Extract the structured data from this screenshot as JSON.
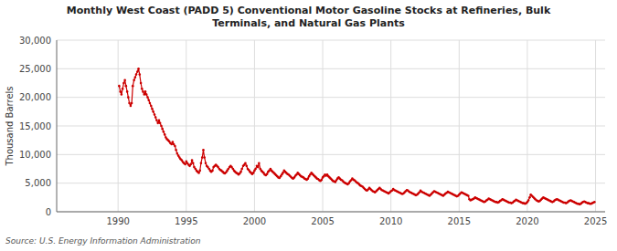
{
  "chart_data": {
    "type": "line",
    "title": "Monthly West Coast (PADD 5) Conventional Motor Gasoline Stocks at Refineries, Bulk\nTerminals, and Natural Gas Plants",
    "ylabel": "Thousand Barrels",
    "source": "Source: U.S. Energy Information Administration",
    "color": "#cc0000",
    "marker": "circle",
    "grid": true,
    "xlim": [
      1985.5,
      2025.7
    ],
    "xticks": [
      1990,
      1995,
      2000,
      2005,
      2010,
      2015,
      2020,
      2025
    ],
    "ylim": [
      0,
      30000
    ],
    "yticks": [
      0,
      {
        "value": 5000,
        "label": "5,000"
      },
      {
        "value": 10000,
        "label": "10,000"
      },
      {
        "value": 15000,
        "label": "15,000"
      },
      {
        "value": 20000,
        "label": "20,000"
      },
      {
        "value": 25000,
        "label": "25,000"
      },
      {
        "value": 30000,
        "label": "30,000"
      }
    ],
    "x": [
      1990.08,
      1990.17,
      1990.25,
      1990.33,
      1990.42,
      1990.5,
      1990.58,
      1990.67,
      1990.75,
      1990.83,
      1990.92,
      1991.0,
      1991.08,
      1991.17,
      1991.25,
      1991.33,
      1991.42,
      1991.5,
      1991.58,
      1991.67,
      1991.75,
      1991.83,
      1991.92,
      1992.0,
      1992.08,
      1992.17,
      1992.25,
      1992.33,
      1992.42,
      1992.5,
      1992.58,
      1992.67,
      1992.75,
      1992.83,
      1992.92,
      1993.0,
      1993.08,
      1993.17,
      1993.25,
      1993.33,
      1993.42,
      1993.5,
      1993.58,
      1993.67,
      1993.75,
      1993.83,
      1993.92,
      1994.0,
      1994.08,
      1994.17,
      1994.25,
      1994.33,
      1994.42,
      1994.5,
      1994.58,
      1994.67,
      1994.75,
      1994.83,
      1994.92,
      1995.0,
      1995.08,
      1995.17,
      1995.25,
      1995.33,
      1995.42,
      1995.5,
      1995.58,
      1995.67,
      1995.75,
      1995.83,
      1995.92,
      1996.0,
      1996.08,
      1996.17,
      1996.25,
      1996.33,
      1996.42,
      1996.5,
      1996.58,
      1996.67,
      1996.75,
      1996.83,
      1996.92,
      1997.0,
      1997.08,
      1997.17,
      1997.25,
      1997.33,
      1997.42,
      1997.5,
      1997.58,
      1997.67,
      1997.75,
      1997.83,
      1997.92,
      1998.0,
      1998.08,
      1998.17,
      1998.25,
      1998.33,
      1998.42,
      1998.5,
      1998.58,
      1998.67,
      1998.75,
      1998.83,
      1998.92,
      1999.0,
      1999.08,
      1999.17,
      1999.25,
      1999.33,
      1999.42,
      1999.5,
      1999.58,
      1999.67,
      1999.75,
      1999.83,
      1999.92,
      2000.0,
      2000.08,
      2000.17,
      2000.25,
      2000.33,
      2000.42,
      2000.5,
      2000.58,
      2000.67,
      2000.75,
      2000.83,
      2000.92,
      2001.0,
      2001.08,
      2001.17,
      2001.25,
      2001.33,
      2001.42,
      2001.5,
      2001.58,
      2001.67,
      2001.75,
      2001.83,
      2001.92,
      2002.0,
      2002.08,
      2002.17,
      2002.25,
      2002.33,
      2002.42,
      2002.5,
      2002.58,
      2002.67,
      2002.75,
      2002.83,
      2002.92,
      2003.0,
      2003.08,
      2003.17,
      2003.25,
      2003.33,
      2003.42,
      2003.5,
      2003.58,
      2003.67,
      2003.75,
      2003.83,
      2003.92,
      2004.0,
      2004.08,
      2004.17,
      2004.25,
      2004.33,
      2004.42,
      2004.5,
      2004.58,
      2004.67,
      2004.75,
      2004.83,
      2004.92,
      2005.0,
      2005.08,
      2005.17,
      2005.25,
      2005.33,
      2005.42,
      2005.5,
      2005.58,
      2005.67,
      2005.75,
      2005.83,
      2005.92,
      2006.0,
      2006.08,
      2006.17,
      2006.25,
      2006.33,
      2006.42,
      2006.5,
      2006.58,
      2006.67,
      2006.75,
      2006.83,
      2006.92,
      2007.0,
      2007.08,
      2007.17,
      2007.25,
      2007.33,
      2007.42,
      2007.5,
      2007.58,
      2007.67,
      2007.75,
      2007.83,
      2007.92,
      2008.0,
      2008.08,
      2008.17,
      2008.25,
      2008.33,
      2008.42,
      2008.5,
      2008.58,
      2008.67,
      2008.75,
      2008.83,
      2008.92,
      2009.0,
      2009.08,
      2009.17,
      2009.25,
      2009.33,
      2009.42,
      2009.5,
      2009.58,
      2009.67,
      2009.75,
      2009.83,
      2009.92,
      2010.0,
      2010.08,
      2010.17,
      2010.25,
      2010.33,
      2010.42,
      2010.5,
      2010.58,
      2010.67,
      2010.75,
      2010.83,
      2010.92,
      2011.0,
      2011.08,
      2011.17,
      2011.25,
      2011.33,
      2011.42,
      2011.5,
      2011.58,
      2011.67,
      2011.75,
      2011.83,
      2011.92,
      2012.0,
      2012.08,
      2012.17,
      2012.25,
      2012.33,
      2012.42,
      2012.5,
      2012.58,
      2012.67,
      2012.75,
      2012.83,
      2012.92,
      2013.0,
      2013.08,
      2013.17,
      2013.25,
      2013.33,
      2013.42,
      2013.5,
      2013.58,
      2013.67,
      2013.75,
      2013.83,
      2013.92,
      2014.0,
      2014.08,
      2014.17,
      2014.25,
      2014.33,
      2014.42,
      2014.5,
      2014.58,
      2014.67,
      2014.75,
      2014.83,
      2014.92,
      2015.0,
      2015.08,
      2015.17,
      2015.25,
      2015.33,
      2015.42,
      2015.5,
      2015.58,
      2015.67,
      2015.75,
      2015.83,
      2015.92,
      2016.0,
      2016.08,
      2016.17,
      2016.25,
      2016.33,
      2016.42,
      2016.5,
      2016.58,
      2016.67,
      2016.75,
      2016.83,
      2016.92,
      2017.0,
      2017.08,
      2017.17,
      2017.25,
      2017.33,
      2017.42,
      2017.5,
      2017.58,
      2017.67,
      2017.75,
      2017.83,
      2017.92,
      2018.0,
      2018.08,
      2018.17,
      2018.25,
      2018.33,
      2018.42,
      2018.5,
      2018.58,
      2018.67,
      2018.75,
      2018.83,
      2018.92,
      2019.0,
      2019.08,
      2019.17,
      2019.25,
      2019.33,
      2019.42,
      2019.5,
      2019.58,
      2019.67,
      2019.75,
      2019.83,
      2019.92,
      2020.0,
      2020.08,
      2020.17,
      2020.25,
      2020.33,
      2020.42,
      2020.5,
      2020.58,
      2020.67,
      2020.75,
      2020.83,
      2020.92,
      2021.0,
      2021.08,
      2021.17,
      2021.25,
      2021.33,
      2021.42,
      2021.5,
      2021.58,
      2021.67,
      2021.75,
      2021.83,
      2021.92,
      2022.0,
      2022.08,
      2022.17,
      2022.25,
      2022.33,
      2022.42,
      2022.5,
      2022.58,
      2022.67,
      2022.75,
      2022.83,
      2022.92,
      2023.0,
      2023.08,
      2023.17,
      2023.25,
      2023.33,
      2023.42,
      2023.5,
      2023.58,
      2023.67,
      2023.75,
      2023.83,
      2023.92,
      2024.0,
      2024.08,
      2024.17,
      2024.25,
      2024.33,
      2024.42,
      2024.5,
      2024.58,
      2024.67,
      2024.75,
      2024.83,
      2024.92
    ],
    "values": [
      22000,
      21000,
      20500,
      21500,
      22500,
      23000,
      22000,
      21000,
      20000,
      19000,
      18500,
      19000,
      22000,
      23000,
      23500,
      24000,
      24500,
      25000,
      24000,
      22500,
      21500,
      21000,
      20500,
      21000,
      20500,
      20000,
      19500,
      19000,
      18500,
      18000,
      17500,
      17000,
      16500,
      16000,
      15500,
      16000,
      15500,
      15000,
      14500,
      14000,
      13500,
      13000,
      12700,
      12500,
      12300,
      12000,
      11800,
      12200,
      11800,
      11500,
      10800,
      10200,
      9800,
      9500,
      9200,
      9000,
      8700,
      8500,
      8300,
      8800,
      8500,
      8200,
      8000,
      8300,
      9000,
      8500,
      7800,
      7500,
      7200,
      7000,
      6800,
      7200,
      8500,
      9500,
      10800,
      9500,
      8500,
      8000,
      7800,
      7500,
      7200,
      7000,
      7200,
      7800,
      8000,
      8200,
      8000,
      7800,
      7500,
      7300,
      7200,
      7000,
      6800,
      6700,
      6900,
      7200,
      7500,
      7800,
      8000,
      7800,
      7500,
      7200,
      7000,
      6800,
      6700,
      6500,
      6700,
      7000,
      7500,
      8000,
      8200,
      8500,
      8000,
      7500,
      7300,
      7000,
      6800,
      6600,
      6800,
      7200,
      7500,
      8000,
      7800,
      8500,
      7500,
      7200,
      7000,
      6800,
      6500,
      6400,
      6600,
      7000,
      7200,
      7500,
      7200,
      7000,
      6800,
      6600,
      6400,
      6200,
      6000,
      5900,
      6200,
      6500,
      6800,
      7200,
      7000,
      6800,
      6600,
      6500,
      6300,
      6100,
      5900,
      5800,
      6000,
      6300,
      6500,
      6800,
      6600,
      6400,
      6200,
      6100,
      6000,
      5800,
      5700,
      5600,
      5800,
      6200,
      6500,
      6800,
      6600,
      6400,
      6200,
      6000,
      5800,
      5700,
      5500,
      5400,
      5600,
      6000,
      6200,
      6500,
      6300,
      6500,
      6200,
      6000,
      5800,
      5600,
      5400,
      5300,
      5200,
      5500,
      5800,
      6000,
      5800,
      5600,
      5500,
      5300,
      5100,
      5000,
      4900,
      4800,
      5000,
      5300,
      5500,
      5800,
      5600,
      5500,
      5300,
      5100,
      5000,
      4800,
      4600,
      4500,
      4400,
      4200,
      4000,
      3800,
      3700,
      3900,
      4200,
      4000,
      3800,
      3600,
      3500,
      3400,
      3600,
      3800,
      4000,
      4200,
      4000,
      3800,
      3700,
      3600,
      3500,
      3400,
      3300,
      3200,
      3400,
      3600,
      3700,
      4000,
      3800,
      3700,
      3600,
      3500,
      3400,
      3300,
      3200,
      3100,
      3200,
      3400,
      3600,
      3800,
      3700,
      3500,
      3400,
      3300,
      3200,
      3100,
      3000,
      2900,
      3000,
      3200,
      3400,
      3700,
      3500,
      3400,
      3300,
      3200,
      3100,
      3000,
      2900,
      2800,
      3000,
      3200,
      3400,
      3600,
      3500,
      3400,
      3300,
      3200,
      3100,
      3000,
      2900,
      2800,
      3000,
      3200,
      3300,
      3500,
      3400,
      3300,
      3200,
      3100,
      3000,
      2900,
      2800,
      2700,
      2800,
      3000,
      3200,
      3400,
      3300,
      3200,
      3100,
      3000,
      2900,
      2800,
      2200,
      2000,
      2100,
      2200,
      2300,
      2500,
      2400,
      2300,
      2200,
      2100,
      2000,
      1900,
      1800,
      1700,
      1800,
      2000,
      2100,
      2300,
      2200,
      2100,
      2000,
      1900,
      1800,
      1700,
      1700,
      1600,
      1700,
      1900,
      2000,
      2200,
      2100,
      2000,
      1900,
      1800,
      1700,
      1600,
      1600,
      1500,
      1600,
      1800,
      1900,
      2100,
      2000,
      1900,
      1800,
      1700,
      1600,
      1500,
      1500,
      1400,
      1500,
      1700,
      2000,
      2500,
      3000,
      2800,
      2600,
      2400,
      2200,
      2000,
      1900,
      1800,
      1900,
      2100,
      2300,
      2500,
      2400,
      2300,
      2200,
      2100,
      2000,
      1900,
      1800,
      1700,
      1800,
      2000,
      2100,
      2200,
      2100,
      2000,
      1900,
      1800,
      1700,
      1600,
      1600,
      1500,
      1600,
      1800,
      1900,
      2000,
      1900,
      1800,
      1700,
      1600,
      1500,
      1400,
      1400,
      1300,
      1400,
      1600,
      1700,
      1800,
      1700,
      1600,
      1500,
      1500,
      1400,
      1400,
      1500,
      1600,
      1700
    ]
  }
}
